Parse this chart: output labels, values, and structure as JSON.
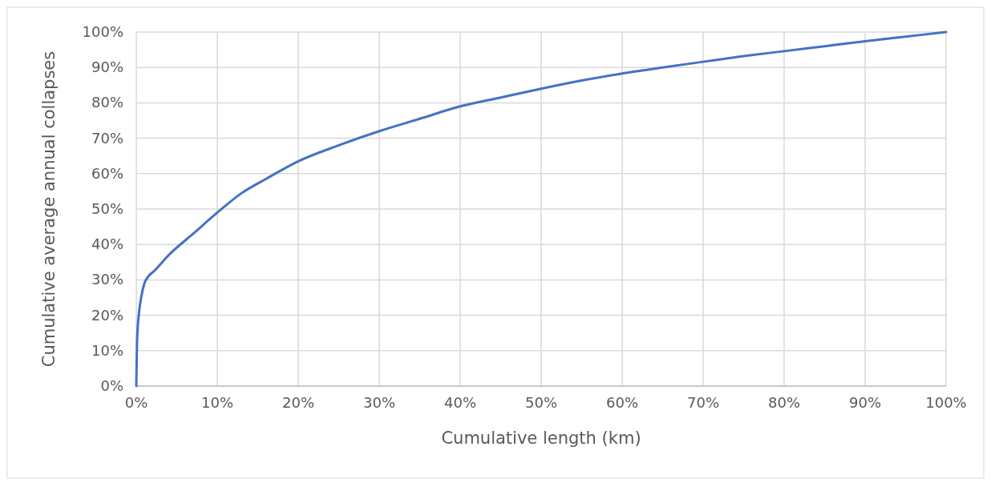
{
  "chart_data": {
    "type": "line",
    "xlabel": "Cumulative length (km)",
    "ylabel": "Cumulative average annual collapses",
    "x": [
      0,
      0.05,
      0.1,
      0.3,
      0.6,
      1,
      1.5,
      2.2,
      4,
      7,
      10,
      13,
      16,
      20,
      25,
      30,
      35,
      40,
      45,
      50,
      55,
      60,
      65,
      70,
      75,
      80,
      85,
      90,
      95,
      100
    ],
    "series": [
      {
        "color": "#4472c4",
        "values": [
          0,
          8,
          13,
          20,
          25,
          29,
          31,
          32.5,
          37,
          43,
          49,
          54.5,
          58.5,
          63.5,
          68,
          72,
          75.5,
          79,
          81.5,
          84,
          86.3,
          88.3,
          90,
          91.6,
          93.2,
          94.6,
          96,
          97.4,
          98.7,
          100
        ]
      }
    ],
    "xlim": [
      0,
      100
    ],
    "ylim": [
      0,
      100
    ],
    "xticks": [
      {
        "value": 0,
        "label": "0%"
      },
      {
        "value": 10,
        "label": "10%"
      },
      {
        "value": 20,
        "label": "20%"
      },
      {
        "value": 30,
        "label": "30%"
      },
      {
        "value": 40,
        "label": "40%"
      },
      {
        "value": 50,
        "label": "50%"
      },
      {
        "value": 60,
        "label": "60%"
      },
      {
        "value": 70,
        "label": "70%"
      },
      {
        "value": 80,
        "label": "80%"
      },
      {
        "value": 90,
        "label": "90%"
      },
      {
        "value": 100,
        "label": "100%"
      }
    ],
    "yticks": [
      {
        "value": 0,
        "label": "0%"
      },
      {
        "value": 10,
        "label": "10%"
      },
      {
        "value": 20,
        "label": "20%"
      },
      {
        "value": 30,
        "label": "30%"
      },
      {
        "value": 40,
        "label": "40%"
      },
      {
        "value": 50,
        "label": "50%"
      },
      {
        "value": 60,
        "label": "60%"
      },
      {
        "value": 70,
        "label": "70%"
      },
      {
        "value": 80,
        "label": "80%"
      },
      {
        "value": 90,
        "label": "90%"
      },
      {
        "value": 100,
        "label": "100%"
      }
    ],
    "grid": true,
    "marker": "none",
    "line_style": "solid"
  }
}
